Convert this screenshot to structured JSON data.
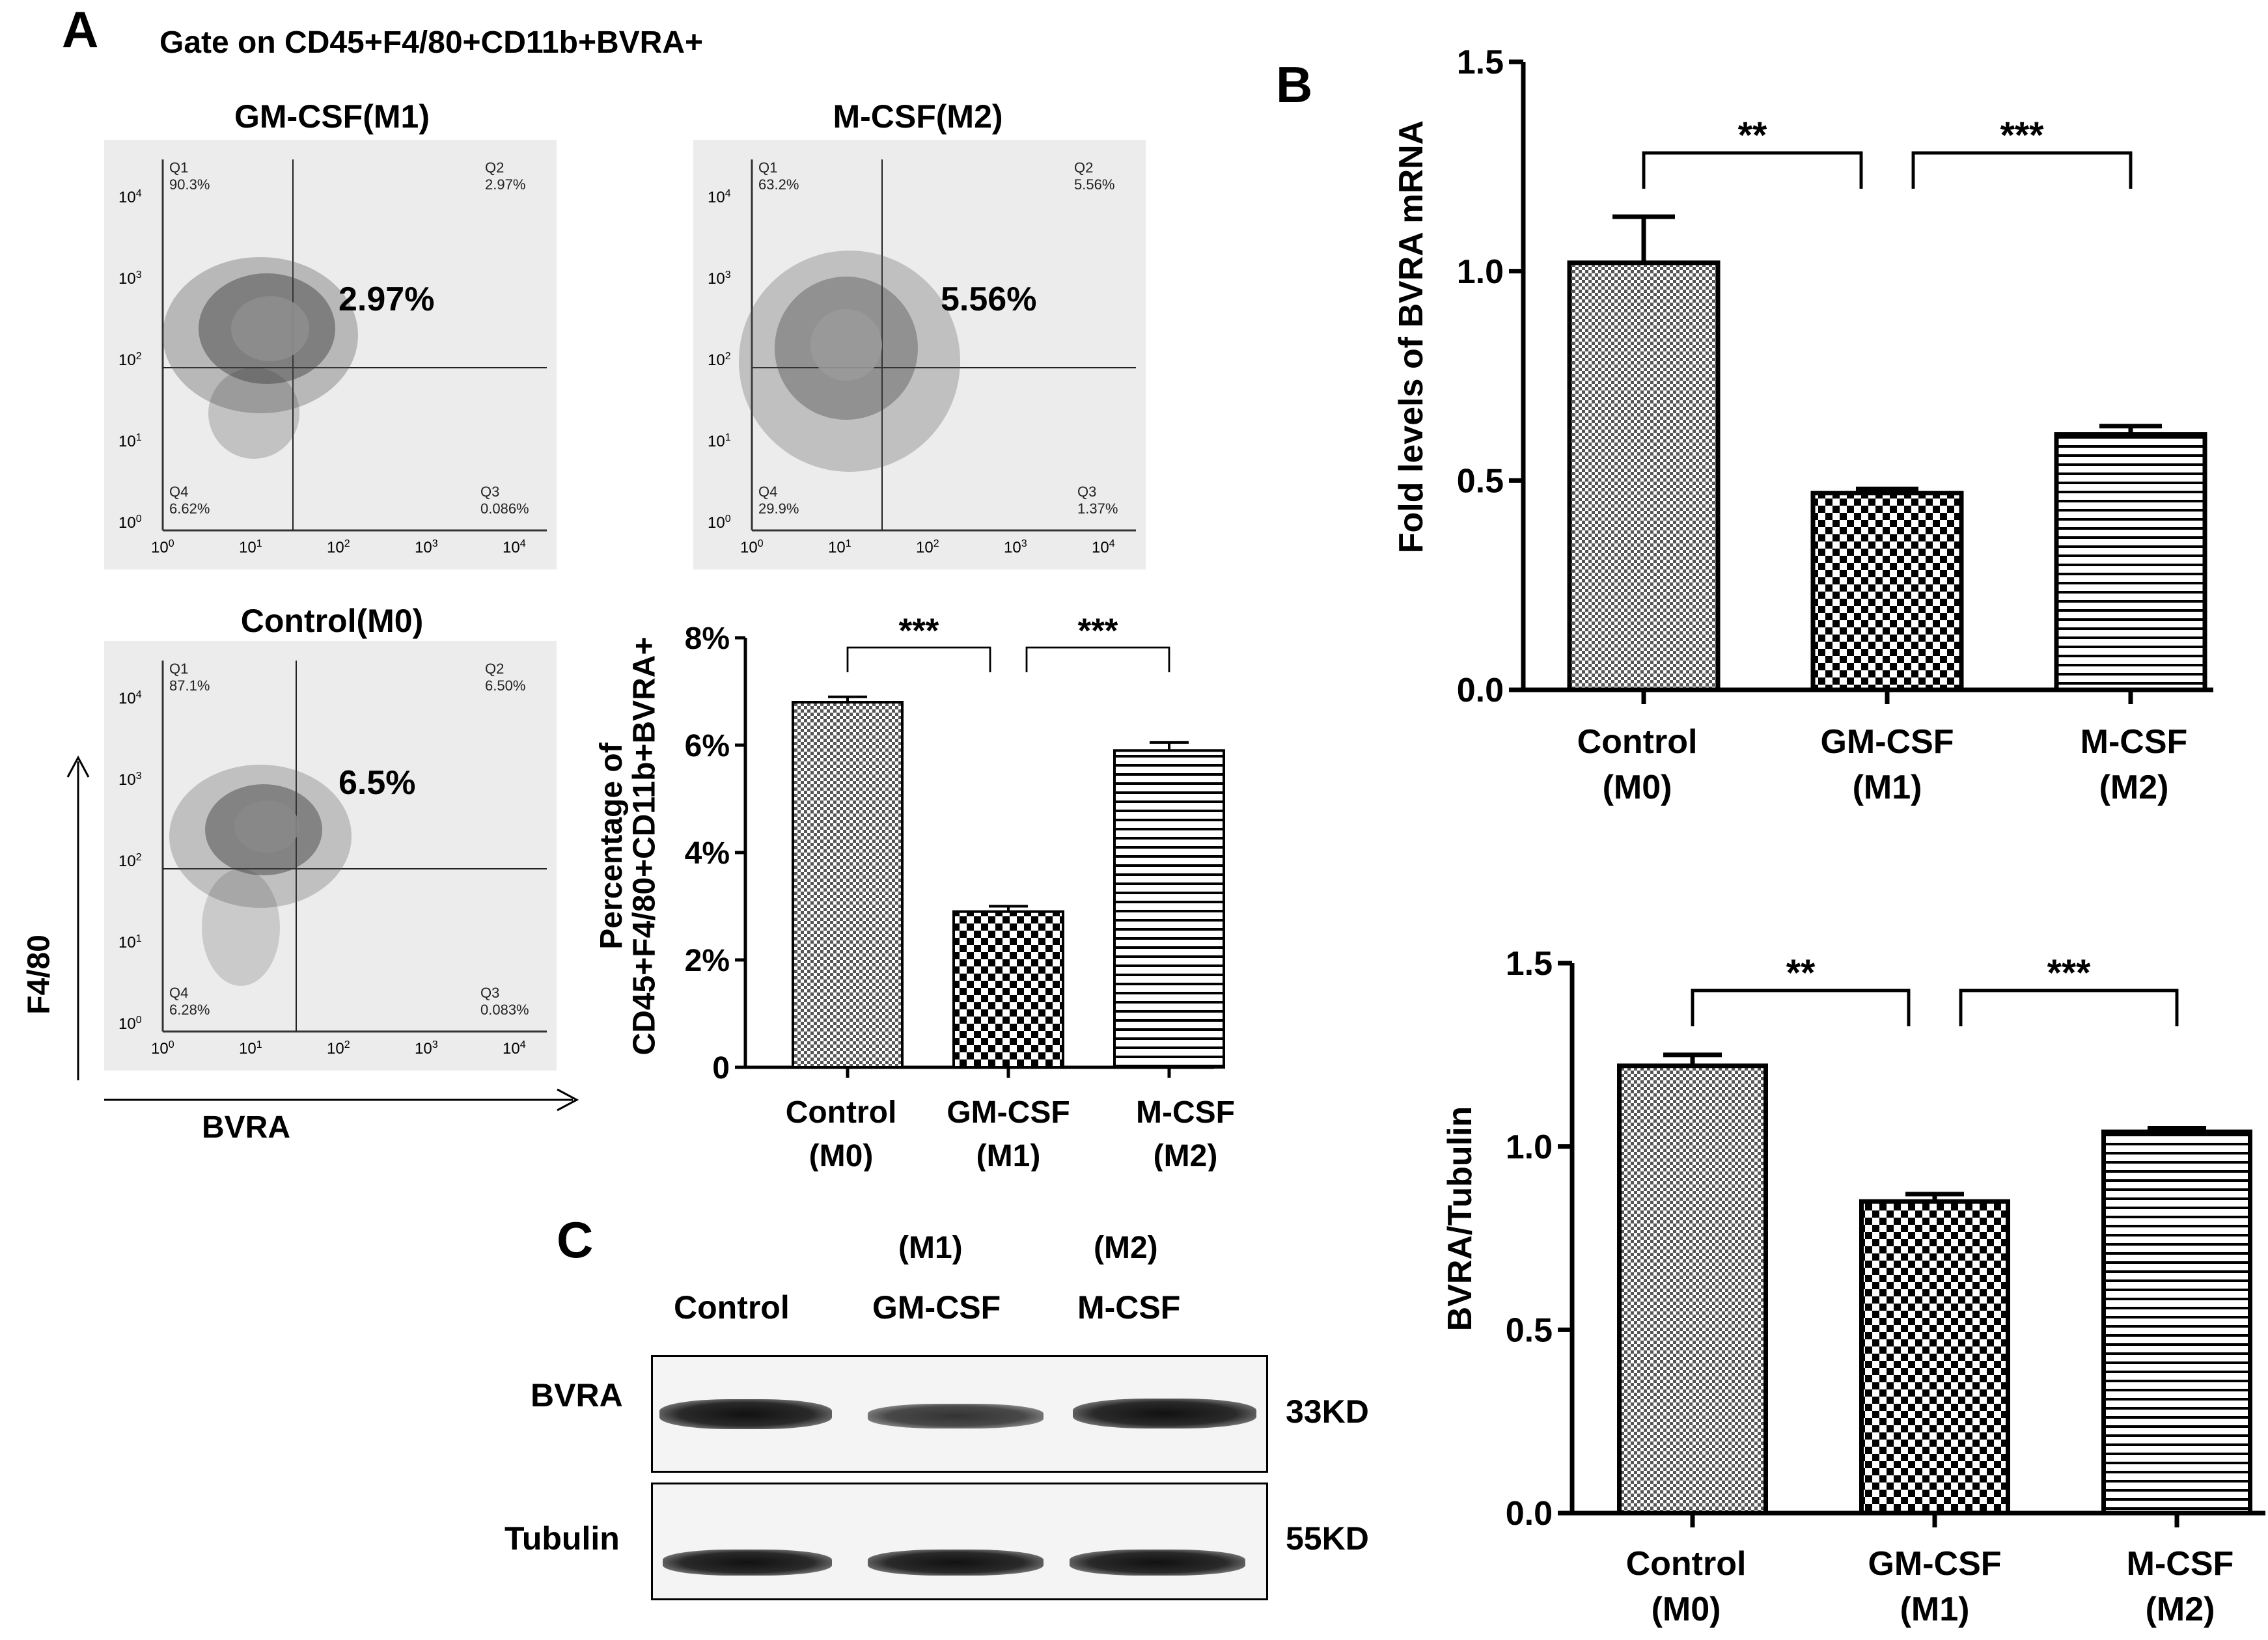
{
  "panel_labels": {
    "a": "A",
    "b": "B",
    "c": "C"
  },
  "panel_a": {
    "gate_title": "Gate on CD45+F4/80+CD11b+BVRA+",
    "facs": [
      {
        "title": "GM-CSF(M1)",
        "q1_name": "Q1",
        "q1": "90.3%",
        "q2_name": "Q2",
        "q2": "2.97%",
        "q3_name": "Q3",
        "q3": "0.086%",
        "q4_name": "Q4",
        "q4": "6.62%",
        "highlight": "2.97%"
      },
      {
        "title": "M-CSF(M2)",
        "q1_name": "Q1",
        "q1": "63.2%",
        "q2_name": "Q2",
        "q2": "5.56%",
        "q3_name": "Q3",
        "q3": "1.37%",
        "q4_name": "Q4",
        "q4": "29.9%",
        "highlight": "5.56%"
      },
      {
        "title": "Control(M0)",
        "q1_name": "Q1",
        "q1": "87.1%",
        "q2_name": "Q2",
        "q2": "6.50%",
        "q3_name": "Q3",
        "q3": "0.083%",
        "q4_name": "Q4",
        "q4": "6.28%",
        "highlight": "6.5%"
      }
    ],
    "facs_tick_base": "10",
    "facs_tick_exponents": [
      "0",
      "1",
      "2",
      "3",
      "4"
    ],
    "y_axis_label": "F4/80",
    "x_axis_label": "BVRA"
  },
  "panel_c": {
    "top_labels": [
      "(M1)",
      "(M2)"
    ],
    "lanes": [
      "Control",
      "GM-CSF",
      "M-CSF"
    ],
    "rows": [
      {
        "name": "BVRA",
        "size": "33KD"
      },
      {
        "name": "Tubulin",
        "size": "55KD"
      }
    ]
  },
  "chart_data": [
    {
      "id": "a_bar",
      "type": "bar",
      "categories": [
        "Control",
        "GM-CSF",
        "M-CSF"
      ],
      "category_sub": [
        "(M0)",
        "(M1)",
        "(M2)"
      ],
      "values": [
        6.8,
        2.9,
        5.9
      ],
      "errors": [
        0.1,
        0.1,
        0.15
      ],
      "ylim": [
        0,
        8
      ],
      "yticks": [
        0,
        2,
        4,
        6,
        8
      ],
      "ytick_labels": [
        "0",
        "2%",
        "4%",
        "6%",
        "8%"
      ],
      "ylabel": [
        "Percentage of",
        "CD45+F4/80+CD11b+BVRA+"
      ],
      "significance": [
        {
          "from": 0,
          "to": 1,
          "label": "***"
        },
        {
          "from": 1,
          "to": 2,
          "label": "***"
        }
      ]
    },
    {
      "id": "b_mrna",
      "type": "bar",
      "categories": [
        "Control",
        "GM-CSF",
        "M-CSF"
      ],
      "category_sub": [
        "(M0)",
        "(M1)",
        "(M2)"
      ],
      "values": [
        1.02,
        0.47,
        0.61
      ],
      "errors": [
        0.11,
        0.01,
        0.02
      ],
      "ylim": [
        0,
        1.5
      ],
      "yticks": [
        0,
        0.5,
        1,
        1.5
      ],
      "ytick_labels": [
        "0.0",
        "0.5",
        "1.0",
        "1.5"
      ],
      "ylabel": [
        "Fold levels of BVRA  mRNA"
      ],
      "significance": [
        {
          "from": 0,
          "to": 1,
          "label": "**"
        },
        {
          "from": 1,
          "to": 2,
          "label": "***"
        }
      ]
    },
    {
      "id": "b_protein",
      "type": "bar",
      "categories": [
        "Control",
        "GM-CSF",
        "M-CSF"
      ],
      "category_sub": [
        "(M0)",
        "(M1)",
        "(M2)"
      ],
      "values": [
        1.22,
        0.85,
        1.04
      ],
      "errors": [
        0.03,
        0.02,
        0.01
      ],
      "ylim": [
        0,
        1.5
      ],
      "yticks": [
        0,
        0.5,
        1,
        1.5
      ],
      "ytick_labels": [
        "0.0",
        "0.5",
        "1.0",
        "1.5"
      ],
      "ylabel": [
        "BVRA/Tubulin"
      ],
      "significance": [
        {
          "from": 0,
          "to": 1,
          "label": "**"
        },
        {
          "from": 1,
          "to": 2,
          "label": "***"
        }
      ]
    }
  ]
}
